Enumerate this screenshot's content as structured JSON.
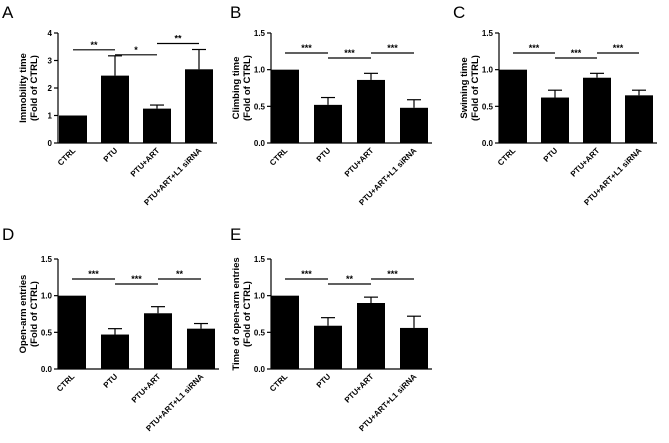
{
  "chart_data": [
    {
      "panel": "A",
      "type": "bar",
      "categories": [
        "CTRL",
        "PTU",
        "PTU+ART",
        "PTU+ART+L1 siRNA"
      ],
      "values": [
        1.0,
        2.45,
        1.25,
        2.68
      ],
      "errors": [
        0,
        0.72,
        0.13,
        0.72
      ],
      "ylabel": [
        "Immobility time",
        "(Fold of CTRL)"
      ],
      "ylim": [
        0,
        4
      ],
      "yticks": [
        0,
        1,
        2,
        3,
        4
      ],
      "ytick_labels": [
        "0",
        "1",
        "2",
        "3",
        "4"
      ],
      "significance": [
        {
          "from": 0,
          "to": 1,
          "label": "**"
        },
        {
          "from": 1,
          "to": 2,
          "label": "*"
        },
        {
          "from": 2,
          "to": 3,
          "label": "**"
        }
      ]
    },
    {
      "panel": "B",
      "type": "bar",
      "categories": [
        "CTRL",
        "PTU",
        "PTU+ART",
        "PTU+ART+L1 siRNA"
      ],
      "values": [
        1.0,
        0.52,
        0.86,
        0.48
      ],
      "errors": [
        0,
        0.1,
        0.09,
        0.11
      ],
      "ylabel": [
        "Climbing time",
        "(Fold of CTRL)"
      ],
      "ylim": [
        0,
        1.5
      ],
      "yticks": [
        0,
        0.5,
        1.0,
        1.5
      ],
      "ytick_labels": [
        "0.0",
        "0.5",
        "1.0",
        "1.5"
      ],
      "significance": [
        {
          "from": 0,
          "to": 1,
          "label": "***"
        },
        {
          "from": 1,
          "to": 2,
          "label": "***"
        },
        {
          "from": 2,
          "to": 3,
          "label": "***"
        }
      ]
    },
    {
      "panel": "C",
      "type": "bar",
      "categories": [
        "CTRL",
        "PTU",
        "PTU+ART",
        "PTU+ART+L1 siRNA"
      ],
      "values": [
        1.0,
        0.62,
        0.89,
        0.65
      ],
      "errors": [
        0,
        0.1,
        0.06,
        0.07
      ],
      "ylabel": [
        "Swiming time",
        "(Fold of CTRL)"
      ],
      "ylim": [
        0,
        1.5
      ],
      "yticks": [
        0,
        0.5,
        1.0,
        1.5
      ],
      "ytick_labels": [
        "0.0",
        "0.5",
        "1.0",
        "1.5"
      ],
      "significance": [
        {
          "from": 0,
          "to": 1,
          "label": "***"
        },
        {
          "from": 1,
          "to": 2,
          "label": "***"
        },
        {
          "from": 2,
          "to": 3,
          "label": "***"
        }
      ]
    },
    {
      "panel": "D",
      "type": "bar",
      "categories": [
        "CTRL",
        "PTU",
        "PTU+ART",
        "PTU+ART+L1 siRNA"
      ],
      "values": [
        1.0,
        0.47,
        0.76,
        0.55
      ],
      "errors": [
        0,
        0.08,
        0.09,
        0.07
      ],
      "ylabel": [
        "Open-arm entries",
        "(Fold of CTRL)"
      ],
      "ylim": [
        0,
        1.5
      ],
      "yticks": [
        0,
        0.5,
        1.0,
        1.5
      ],
      "ytick_labels": [
        "0.0",
        "0.5",
        "1.0",
        "1.5"
      ],
      "significance": [
        {
          "from": 0,
          "to": 1,
          "label": "***"
        },
        {
          "from": 1,
          "to": 2,
          "label": "***"
        },
        {
          "from": 2,
          "to": 3,
          "label": "**"
        }
      ]
    },
    {
      "panel": "E",
      "type": "bar",
      "categories": [
        "CTRL",
        "PTU",
        "PTU+ART",
        "PTU+ART+L1 siRNA"
      ],
      "values": [
        1.0,
        0.59,
        0.9,
        0.56
      ],
      "errors": [
        0,
        0.11,
        0.08,
        0.16
      ],
      "ylabel": [
        "Time of open-arm entries",
        "(Fold of CTRL)"
      ],
      "ylim": [
        0,
        1.5
      ],
      "yticks": [
        0,
        0.5,
        1.0,
        1.5
      ],
      "ytick_labels": [
        "0.0",
        "0.5",
        "1.0",
        "1.5"
      ],
      "significance": [
        {
          "from": 0,
          "to": 1,
          "label": "***"
        },
        {
          "from": 1,
          "to": 2,
          "label": "**"
        },
        {
          "from": 2,
          "to": 3,
          "label": "***"
        }
      ]
    }
  ],
  "style": {
    "bar_color": "#000000",
    "axis_color": "#000000",
    "background": "#ffffff"
  }
}
